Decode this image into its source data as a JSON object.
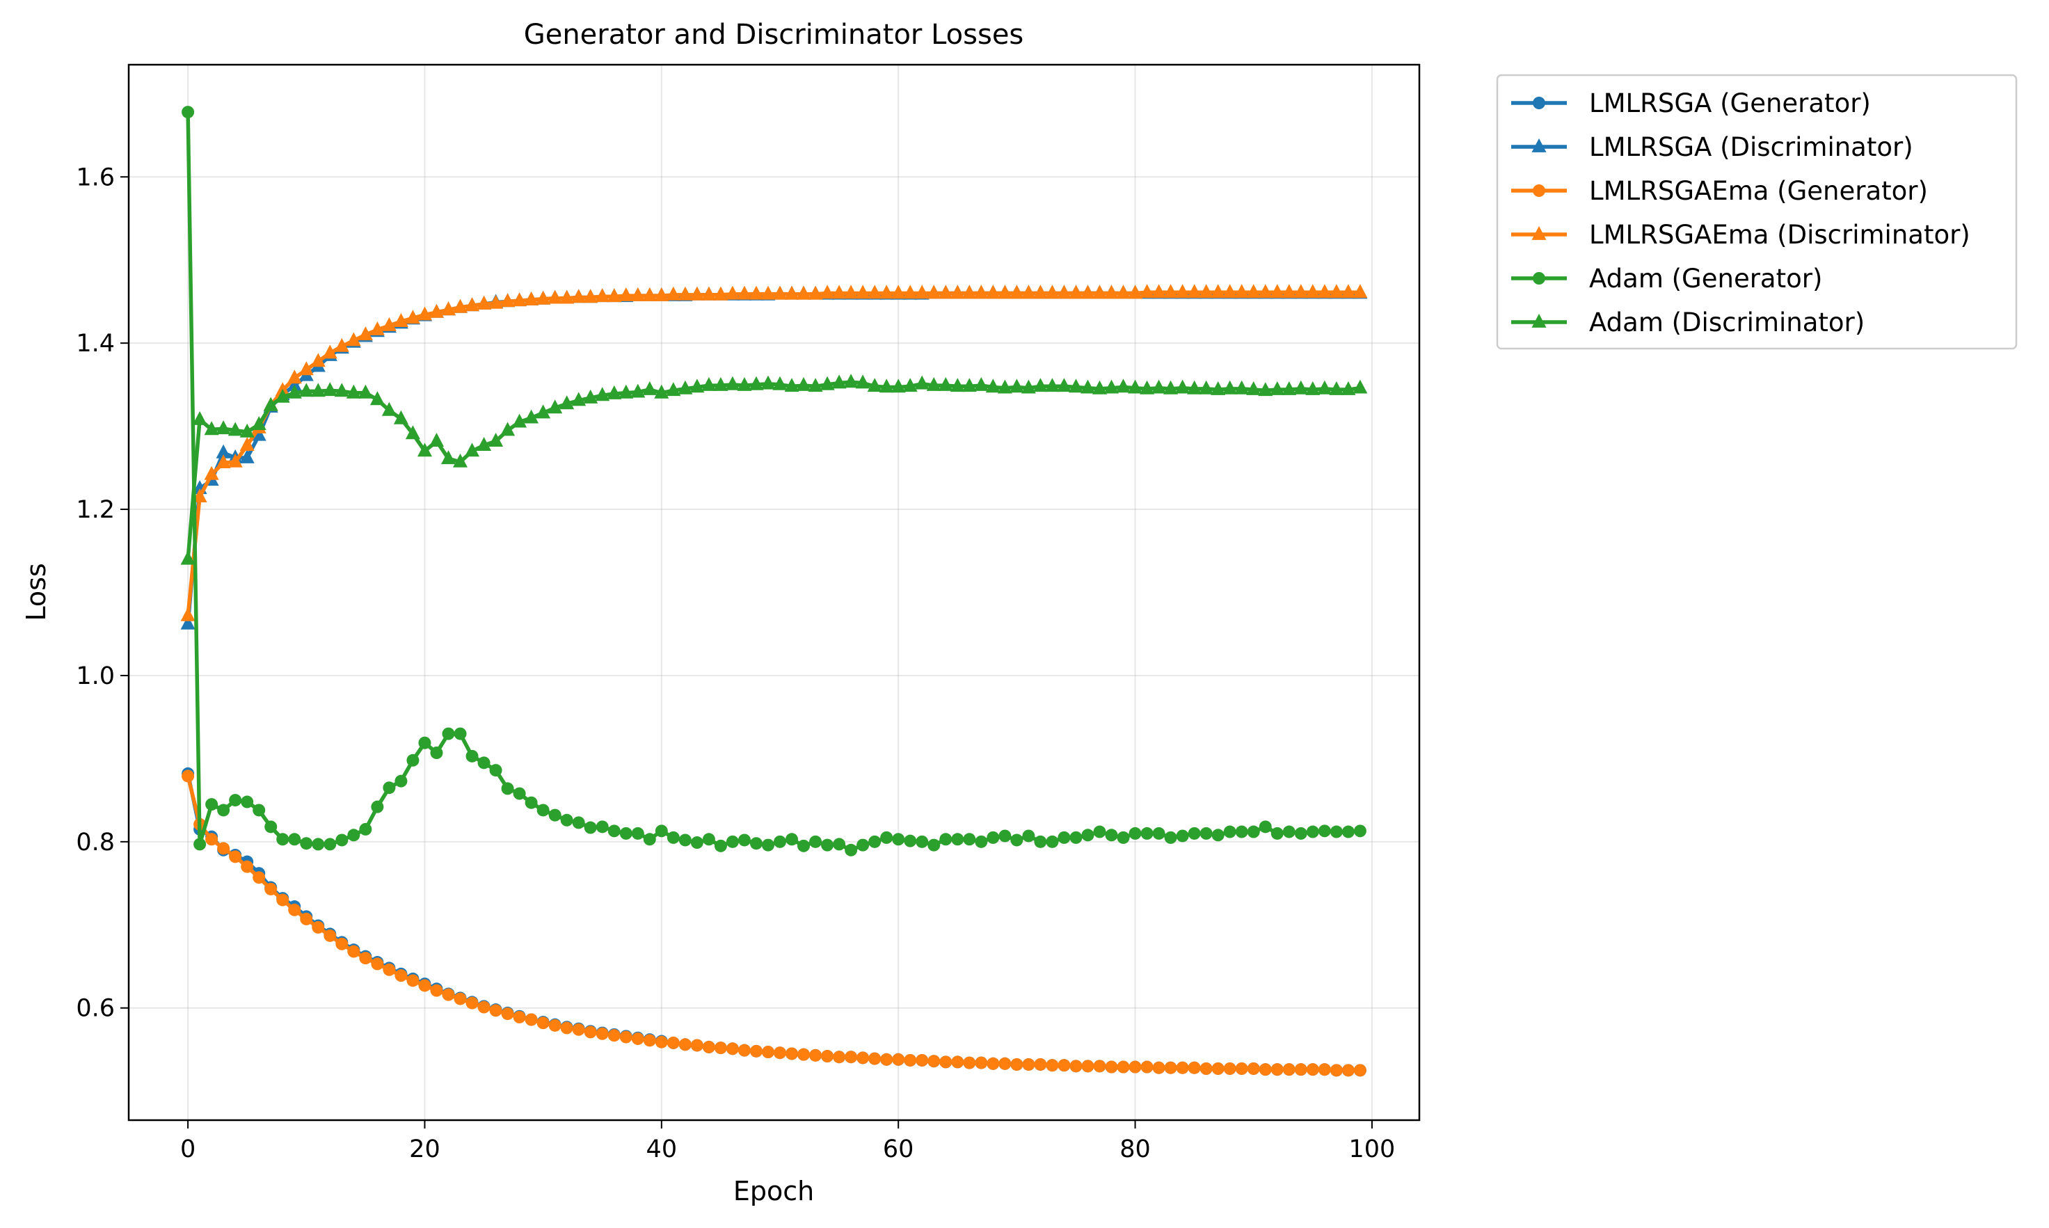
{
  "chart_data": {
    "type": "line",
    "title": "Generator and Discriminator Losses",
    "xlabel": "Epoch",
    "ylabel": "Loss",
    "xlim": [
      -5,
      104
    ],
    "ylim": [
      0.465,
      1.735
    ],
    "xticks": [
      0,
      20,
      40,
      60,
      80,
      100
    ],
    "yticks": [
      0.6,
      0.8,
      1.0,
      1.2,
      1.4,
      1.6
    ],
    "xtick_labels": [
      "0",
      "20",
      "40",
      "60",
      "80",
      "100"
    ],
    "ytick_labels": [
      "0.6",
      "0.8",
      "1.0",
      "1.2",
      "1.4",
      "1.6"
    ],
    "grid": true,
    "legend_position": "outside-right-top",
    "colors": {
      "blue": "#1f77b4",
      "orange": "#ff7f0e",
      "green": "#2ca02c"
    },
    "series": [
      {
        "name": "LMLRSGA (Generator)",
        "color": "#1f77b4",
        "marker": "circle",
        "values": [
          0.882,
          0.815,
          0.806,
          0.79,
          0.784,
          0.776,
          0.762,
          0.745,
          0.732,
          0.722,
          0.71,
          0.699,
          0.689,
          0.679,
          0.67,
          0.662,
          0.655,
          0.648,
          0.641,
          0.635,
          0.629,
          0.623,
          0.617,
          0.612,
          0.607,
          0.602,
          0.598,
          0.594,
          0.59,
          0.586,
          0.583,
          0.58,
          0.577,
          0.575,
          0.572,
          0.57,
          0.568,
          0.566,
          0.564,
          0.562,
          0.56,
          0.558,
          0.556,
          0.555,
          0.553,
          0.552,
          0.551,
          0.549,
          0.548,
          0.547,
          0.546,
          0.545,
          0.544,
          0.543,
          0.542,
          0.541,
          0.541,
          0.54,
          0.539,
          0.538,
          0.538,
          0.537,
          0.537,
          0.536,
          0.535,
          0.535,
          0.534,
          0.534,
          0.533,
          0.533,
          0.532,
          0.532,
          0.532,
          0.531,
          0.531,
          0.53,
          0.53,
          0.53,
          0.529,
          0.529,
          0.529,
          0.529,
          0.528,
          0.528,
          0.528,
          0.528,
          0.527,
          0.527,
          0.527,
          0.527,
          0.527,
          0.526,
          0.526,
          0.526,
          0.526,
          0.526,
          0.526,
          0.525,
          0.525,
          0.525
        ]
      },
      {
        "name": "LMLRSGA (Discriminator)",
        "color": "#1f77b4",
        "marker": "triangle",
        "values": [
          1.062,
          1.225,
          1.235,
          1.268,
          1.262,
          1.262,
          1.289,
          1.323,
          1.338,
          1.349,
          1.361,
          1.372,
          1.385,
          1.394,
          1.401,
          1.408,
          1.414,
          1.419,
          1.424,
          1.429,
          1.433,
          1.437,
          1.44,
          1.443,
          1.445,
          1.447,
          1.449,
          1.45,
          1.451,
          1.452,
          1.453,
          1.454,
          1.454,
          1.455,
          1.455,
          1.456,
          1.456,
          1.456,
          1.457,
          1.457,
          1.457,
          1.457,
          1.457,
          1.458,
          1.458,
          1.458,
          1.458,
          1.458,
          1.458,
          1.458,
          1.459,
          1.459,
          1.459,
          1.459,
          1.459,
          1.459,
          1.459,
          1.459,
          1.459,
          1.459,
          1.459,
          1.459,
          1.459,
          1.46,
          1.46,
          1.46,
          1.46,
          1.46,
          1.46,
          1.46,
          1.46,
          1.46,
          1.46,
          1.46,
          1.46,
          1.46,
          1.46,
          1.46,
          1.46,
          1.46,
          1.46,
          1.46,
          1.46,
          1.46,
          1.46,
          1.46,
          1.46,
          1.46,
          1.46,
          1.46,
          1.46,
          1.46,
          1.46,
          1.46,
          1.46,
          1.46,
          1.46,
          1.46,
          1.46,
          1.46
        ]
      },
      {
        "name": "LMLRSGAEma (Generator)",
        "color": "#ff7f0e",
        "marker": "circle",
        "values": [
          0.879,
          0.821,
          0.803,
          0.792,
          0.782,
          0.77,
          0.757,
          0.743,
          0.73,
          0.718,
          0.707,
          0.697,
          0.687,
          0.677,
          0.668,
          0.66,
          0.653,
          0.646,
          0.639,
          0.633,
          0.627,
          0.621,
          0.616,
          0.611,
          0.606,
          0.601,
          0.597,
          0.593,
          0.589,
          0.586,
          0.582,
          0.579,
          0.576,
          0.574,
          0.571,
          0.569,
          0.567,
          0.565,
          0.563,
          0.561,
          0.559,
          0.558,
          0.556,
          0.555,
          0.553,
          0.552,
          0.551,
          0.549,
          0.548,
          0.547,
          0.546,
          0.545,
          0.544,
          0.543,
          0.542,
          0.541,
          0.541,
          0.54,
          0.539,
          0.538,
          0.538,
          0.537,
          0.537,
          0.536,
          0.535,
          0.535,
          0.534,
          0.534,
          0.533,
          0.533,
          0.532,
          0.532,
          0.532,
          0.531,
          0.531,
          0.53,
          0.53,
          0.53,
          0.529,
          0.529,
          0.529,
          0.529,
          0.528,
          0.528,
          0.528,
          0.528,
          0.527,
          0.527,
          0.527,
          0.527,
          0.527,
          0.526,
          0.526,
          0.526,
          0.526,
          0.526,
          0.526,
          0.525,
          0.525,
          0.525
        ]
      },
      {
        "name": "LMLRSGAEma (Discriminator)",
        "color": "#ff7f0e",
        "marker": "triangle",
        "values": [
          1.072,
          1.215,
          1.242,
          1.256,
          1.257,
          1.277,
          1.298,
          1.325,
          1.343,
          1.358,
          1.368,
          1.378,
          1.388,
          1.396,
          1.403,
          1.41,
          1.416,
          1.421,
          1.426,
          1.43,
          1.434,
          1.437,
          1.44,
          1.443,
          1.445,
          1.447,
          1.448,
          1.45,
          1.451,
          1.452,
          1.453,
          1.454,
          1.454,
          1.455,
          1.455,
          1.456,
          1.456,
          1.457,
          1.457,
          1.457,
          1.457,
          1.458,
          1.458,
          1.458,
          1.458,
          1.458,
          1.459,
          1.459,
          1.459,
          1.459,
          1.459,
          1.459,
          1.459,
          1.459,
          1.46,
          1.46,
          1.46,
          1.46,
          1.46,
          1.46,
          1.46,
          1.46,
          1.46,
          1.46,
          1.46,
          1.46,
          1.46,
          1.46,
          1.46,
          1.46,
          1.46,
          1.46,
          1.46,
          1.46,
          1.46,
          1.46,
          1.46,
          1.46,
          1.46,
          1.46,
          1.46,
          1.461,
          1.461,
          1.461,
          1.461,
          1.461,
          1.461,
          1.461,
          1.461,
          1.461,
          1.461,
          1.461,
          1.461,
          1.461,
          1.461,
          1.461,
          1.461,
          1.461,
          1.461,
          1.461
        ]
      },
      {
        "name": "Adam (Generator)",
        "color": "#2ca02c",
        "marker": "circle",
        "values": [
          1.678,
          0.797,
          0.845,
          0.838,
          0.85,
          0.848,
          0.838,
          0.818,
          0.803,
          0.803,
          0.798,
          0.797,
          0.797,
          0.802,
          0.808,
          0.815,
          0.842,
          0.865,
          0.873,
          0.898,
          0.919,
          0.907,
          0.93,
          0.93,
          0.903,
          0.895,
          0.886,
          0.864,
          0.858,
          0.847,
          0.838,
          0.832,
          0.826,
          0.823,
          0.817,
          0.818,
          0.813,
          0.81,
          0.81,
          0.803,
          0.813,
          0.805,
          0.802,
          0.799,
          0.803,
          0.795,
          0.8,
          0.802,
          0.798,
          0.796,
          0.8,
          0.803,
          0.795,
          0.8,
          0.796,
          0.797,
          0.79,
          0.796,
          0.8,
          0.805,
          0.803,
          0.801,
          0.8,
          0.796,
          0.803,
          0.803,
          0.803,
          0.8,
          0.805,
          0.807,
          0.802,
          0.807,
          0.8,
          0.8,
          0.805,
          0.805,
          0.808,
          0.812,
          0.808,
          0.805,
          0.81,
          0.81,
          0.81,
          0.805,
          0.807,
          0.81,
          0.81,
          0.808,
          0.812,
          0.812,
          0.812,
          0.818,
          0.81,
          0.812,
          0.81,
          0.812,
          0.813,
          0.812,
          0.812,
          0.813
        ]
      },
      {
        "name": "Adam (Discriminator)",
        "color": "#2ca02c",
        "marker": "triangle",
        "values": [
          1.14,
          1.308,
          1.296,
          1.297,
          1.295,
          1.293,
          1.302,
          1.325,
          1.335,
          1.34,
          1.342,
          1.342,
          1.343,
          1.342,
          1.34,
          1.34,
          1.332,
          1.319,
          1.309,
          1.291,
          1.27,
          1.282,
          1.261,
          1.257,
          1.27,
          1.277,
          1.282,
          1.295,
          1.305,
          1.31,
          1.316,
          1.322,
          1.327,
          1.331,
          1.334,
          1.337,
          1.339,
          1.34,
          1.341,
          1.344,
          1.34,
          1.343,
          1.345,
          1.347,
          1.349,
          1.349,
          1.35,
          1.349,
          1.35,
          1.351,
          1.35,
          1.348,
          1.349,
          1.348,
          1.35,
          1.352,
          1.353,
          1.352,
          1.348,
          1.347,
          1.347,
          1.348,
          1.351,
          1.349,
          1.349,
          1.348,
          1.348,
          1.349,
          1.347,
          1.346,
          1.347,
          1.346,
          1.348,
          1.348,
          1.348,
          1.347,
          1.346,
          1.345,
          1.346,
          1.347,
          1.346,
          1.345,
          1.346,
          1.345,
          1.346,
          1.345,
          1.345,
          1.344,
          1.345,
          1.345,
          1.344,
          1.343,
          1.344,
          1.344,
          1.345,
          1.344,
          1.345,
          1.344,
          1.344,
          1.346
        ]
      }
    ]
  }
}
